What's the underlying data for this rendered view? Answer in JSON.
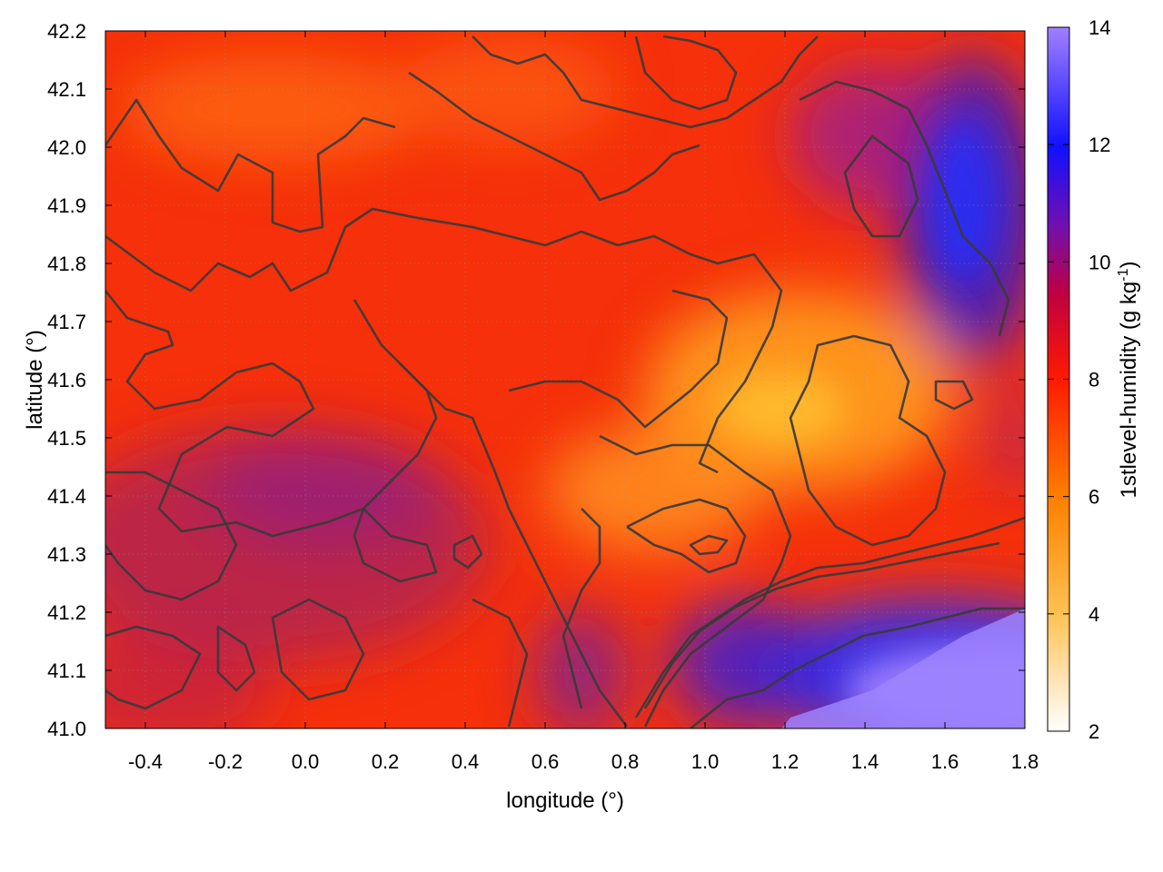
{
  "chart_data": {
    "type": "heatmap",
    "xlabel": "longitude (°)",
    "ylabel": "latitude (°)",
    "xlim": [
      -0.5,
      1.8
    ],
    "ylim": [
      41.0,
      42.2
    ],
    "x_ticks": [
      "-0.4",
      "-0.2",
      "0.0",
      "0.2",
      "0.4",
      "0.6",
      "0.8",
      "1.0",
      "1.2",
      "1.4",
      "1.6",
      "1.8"
    ],
    "y_ticks": [
      "41.0",
      "41.1",
      "41.2",
      "41.3",
      "41.4",
      "41.5",
      "41.6",
      "41.7",
      "41.8",
      "41.9",
      "42.0",
      "42.1",
      "42.2"
    ],
    "colorbar": {
      "label_main": "1stlevel-humidity (g kg",
      "label_sup": "-1",
      "label_end": ")",
      "range": [
        2,
        14
      ],
      "ticks": [
        "2",
        "4",
        "6",
        "8",
        "10",
        "12",
        "14"
      ],
      "colors": [
        "#ffffff",
        "#ffa500",
        "#ff0000",
        "#8000a0",
        "#0000ff",
        "#a080ff"
      ]
    },
    "grid": true,
    "contours": true,
    "field_description_values": [
      {
        "lon": -0.3,
        "lat": 41.3,
        "humidity": 8.8
      },
      {
        "lon": 0.1,
        "lat": 41.4,
        "humidity": 9.2
      },
      {
        "lon": 0.8,
        "lat": 41.4,
        "humidity": 5.8
      },
      {
        "lon": 1.2,
        "lat": 41.6,
        "humidity": 5.2
      },
      {
        "lon": 1.6,
        "lat": 41.9,
        "humidity": 10.8
      },
      {
        "lon": 1.6,
        "lat": 41.1,
        "humidity": 13.5
      },
      {
        "lon": 0.3,
        "lat": 42.0,
        "humidity": 6.8
      }
    ]
  }
}
